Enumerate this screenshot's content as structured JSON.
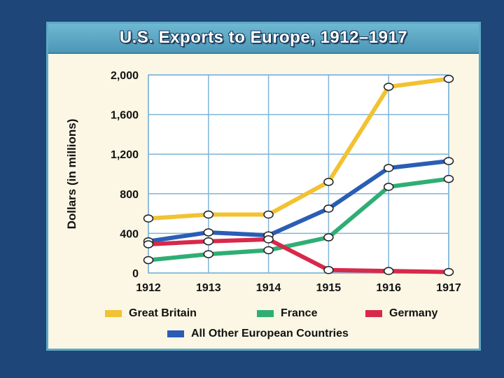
{
  "chart_data": {
    "type": "line",
    "title": "U.S. Exports to Europe, 1912–1917",
    "ylabel": "Dollars (in millions)",
    "xlabel": "",
    "x": [
      "1912",
      "1913",
      "1914",
      "1915",
      "1916",
      "1917"
    ],
    "yticks": [
      "0",
      "400",
      "800",
      "1,200",
      "1,600",
      "2,000"
    ],
    "ylim": [
      0,
      2000
    ],
    "grid": true,
    "legend_placement": "bottom",
    "series": [
      {
        "name": "Great Britain",
        "color": "#f2c232",
        "values": [
          550,
          590,
          590,
          920,
          1880,
          1960
        ]
      },
      {
        "name": "All Other European Countries",
        "color": "#2a5db5",
        "values": [
          320,
          410,
          380,
          650,
          1060,
          1130
        ]
      },
      {
        "name": "France",
        "color": "#2fae74",
        "values": [
          130,
          190,
          230,
          360,
          870,
          950
        ]
      },
      {
        "name": "Germany",
        "color": "#d8294a",
        "values": [
          290,
          320,
          340,
          30,
          20,
          10
        ]
      }
    ]
  }
}
